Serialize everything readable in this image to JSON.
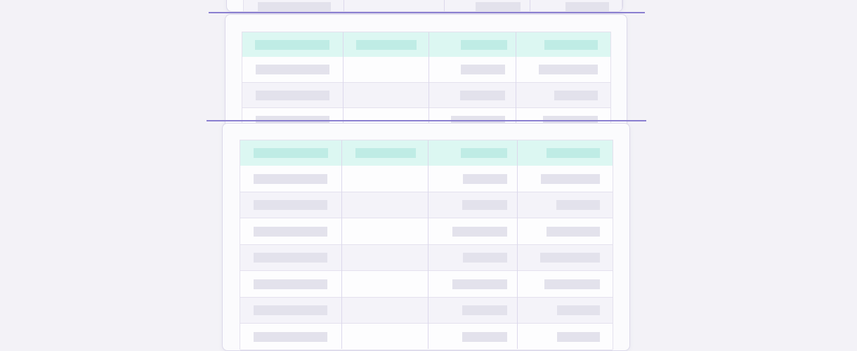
{
  "colors": {
    "background": "#f3f2f7",
    "card": "#fbfbfd",
    "header": "#dcf7f2",
    "header_placeholder": "#bfece5",
    "cell_placeholder": "#e3e2ec",
    "divider": "#8a7fd0"
  }
}
